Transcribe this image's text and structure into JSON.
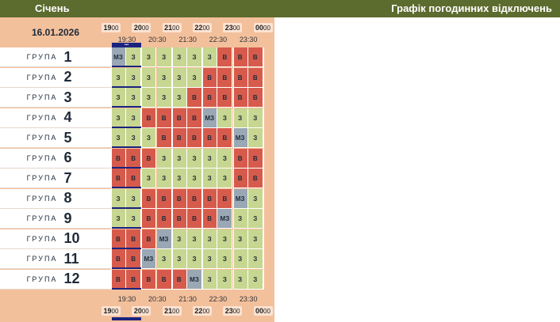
{
  "header": {
    "month": "Січень",
    "title": "Графік погодинних відключень"
  },
  "date": "16.01.2026",
  "hours": [
    {
      "h": "19",
      "m": "00"
    },
    {
      "h": "20",
      "m": "00"
    },
    {
      "h": "21",
      "m": "00"
    },
    {
      "h": "22",
      "m": "00"
    },
    {
      "h": "23",
      "m": "00"
    },
    {
      "h": "00",
      "m": "00"
    }
  ],
  "half_hours": [
    "19:30",
    "20:30",
    "21:30",
    "22:30",
    "23:30"
  ],
  "group_word": "ГРУПА",
  "now_marker": "•••",
  "colors": {
    "on": "#c7d690",
    "off": "#d75b4c",
    "maybe": "#9aa7b4",
    "header": "#5c6b2e",
    "panel": "#f3c09c"
  },
  "groups": [
    {
      "num": "1",
      "cells": [
        "МЗ",
        "З",
        "З",
        "З",
        "З",
        "З",
        "З",
        "В",
        "В",
        "В"
      ]
    },
    {
      "num": "2",
      "cells": [
        "З",
        "З",
        "З",
        "З",
        "З",
        "З",
        "В",
        "В",
        "В",
        "В"
      ]
    },
    {
      "num": "3",
      "cells": [
        "З",
        "З",
        "З",
        "З",
        "З",
        "В",
        "В",
        "В",
        "В",
        "В"
      ]
    },
    {
      "num": "4",
      "cells": [
        "З",
        "З",
        "В",
        "В",
        "В",
        "В",
        "МЗ",
        "З",
        "З",
        "З"
      ]
    },
    {
      "num": "5",
      "cells": [
        "З",
        "З",
        "З",
        "В",
        "В",
        "В",
        "В",
        "В",
        "МЗ",
        "З"
      ]
    },
    {
      "num": "6",
      "cells": [
        "В",
        "В",
        "В",
        "З",
        "З",
        "З",
        "З",
        "З",
        "В",
        "В"
      ]
    },
    {
      "num": "7",
      "cells": [
        "В",
        "В",
        "З",
        "З",
        "З",
        "З",
        "З",
        "З",
        "В",
        "В"
      ]
    },
    {
      "num": "8",
      "cells": [
        "З",
        "З",
        "В",
        "В",
        "В",
        "В",
        "В",
        "В",
        "МЗ",
        "З"
      ]
    },
    {
      "num": "9",
      "cells": [
        "З",
        "З",
        "В",
        "В",
        "В",
        "В",
        "В",
        "МЗ",
        "З",
        "З"
      ]
    },
    {
      "num": "10",
      "cells": [
        "В",
        "В",
        "В",
        "МЗ",
        "З",
        "З",
        "З",
        "З",
        "З",
        "З"
      ]
    },
    {
      "num": "11",
      "cells": [
        "В",
        "В",
        "МЗ",
        "З",
        "З",
        "З",
        "З",
        "З",
        "З",
        "З"
      ]
    },
    {
      "num": "12",
      "cells": [
        "В",
        "В",
        "В",
        "В",
        "В",
        "МЗ",
        "З",
        "З",
        "З",
        "З"
      ]
    }
  ]
}
